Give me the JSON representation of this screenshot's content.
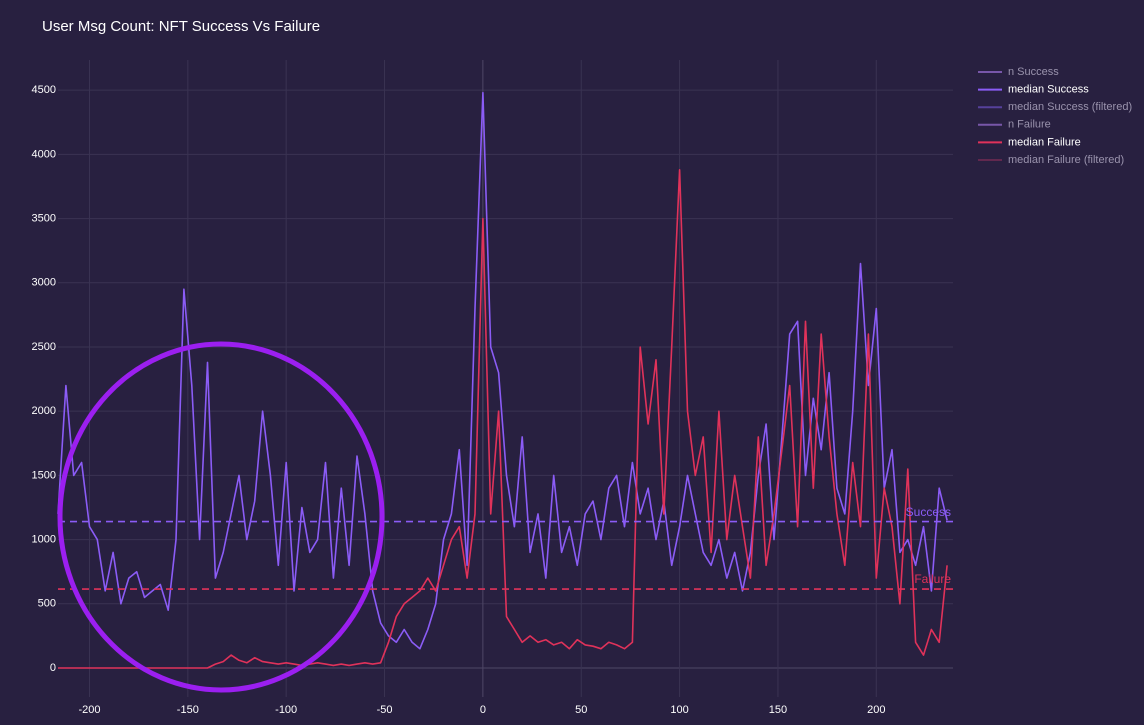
{
  "chart_data": {
    "type": "line",
    "title": "User Msg Count: NFT Success Vs Failure",
    "xlim": [
      -216,
      239
    ],
    "ylim": [
      -226,
      4735
    ],
    "xticks": [
      -200,
      -150,
      -100,
      -50,
      0,
      50,
      100,
      150,
      200
    ],
    "yticks": [
      0,
      500,
      1000,
      1500,
      2000,
      2500,
      3000,
      3500,
      4000,
      4500
    ],
    "grid": true,
    "legend": [
      {
        "name": "n Success",
        "color": "#9b6fd6",
        "dim": true
      },
      {
        "name": "median Success",
        "color": "#8b5cf6",
        "dim": false
      },
      {
        "name": "median Success (filtered)",
        "color": "#6a4fc2",
        "dim": true
      },
      {
        "name": "n Failure",
        "color": "#9b6fd6",
        "dim": true
      },
      {
        "name": "median Failure",
        "color": "#e0325a",
        "dim": false
      },
      {
        "name": "median Failure (filtered)",
        "color": "#7a2c55",
        "dim": true
      }
    ],
    "hlines": [
      {
        "value": 1140,
        "label": "Success",
        "color": "#8b5cf6"
      },
      {
        "value": 615,
        "label": "Failure",
        "color": "#e0325a"
      }
    ],
    "x": [
      -216,
      -212,
      -208,
      -204,
      -200,
      -196,
      -192,
      -188,
      -184,
      -180,
      -176,
      -172,
      -168,
      -164,
      -160,
      -156,
      -152,
      -148,
      -144,
      -140,
      -136,
      -132,
      -128,
      -124,
      -120,
      -116,
      -112,
      -108,
      -104,
      -100,
      -96,
      -92,
      -88,
      -84,
      -80,
      -76,
      -72,
      -68,
      -64,
      -60,
      -56,
      -52,
      -48,
      -44,
      -40,
      -36,
      -32,
      -28,
      -24,
      -20,
      -16,
      -12,
      -8,
      -4,
      0,
      4,
      8,
      12,
      16,
      20,
      24,
      28,
      32,
      36,
      40,
      44,
      48,
      52,
      56,
      60,
      64,
      68,
      72,
      76,
      80,
      84,
      88,
      92,
      96,
      100,
      104,
      108,
      112,
      116,
      120,
      124,
      128,
      132,
      136,
      140,
      144,
      148,
      152,
      156,
      160,
      164,
      168,
      172,
      176,
      180,
      184,
      188,
      192,
      196,
      200,
      204,
      208,
      212,
      216,
      220,
      224,
      228,
      232,
      236
    ],
    "series": [
      {
        "color": "#8b5cf6",
        "values": [
          1200,
          2200,
          1500,
          1600,
          1100,
          1000,
          600,
          900,
          500,
          700,
          750,
          550,
          600,
          650,
          450,
          1000,
          2950,
          2200,
          1000,
          2380,
          700,
          900,
          1200,
          1500,
          1000,
          1300,
          2000,
          1500,
          800,
          1600,
          600,
          1250,
          900,
          1000,
          1600,
          700,
          1400,
          800,
          1650,
          1200,
          600,
          350,
          250,
          200,
          300,
          200,
          150,
          300,
          500,
          1000,
          1200,
          1700,
          800,
          2800,
          4480,
          2500,
          2300,
          1500,
          1100,
          1800,
          900,
          1200,
          700,
          1500,
          900,
          1100,
          800,
          1200,
          1300,
          1000,
          1400,
          1500,
          1100,
          1600,
          1200,
          1400,
          1000,
          1300,
          800,
          1100,
          1500,
          1200,
          900,
          800,
          1000,
          700,
          900,
          600,
          900,
          1500,
          1900,
          1000,
          1800,
          2600,
          2700,
          1500,
          2100,
          1700,
          2300,
          1400,
          1200,
          2000,
          3150,
          2200,
          2800,
          1400,
          1700,
          900,
          1000,
          800,
          1100,
          600,
          1400,
          1150
        ]
      },
      {
        "color": "#e0325a",
        "values": [
          0,
          0,
          0,
          0,
          0,
          0,
          0,
          0,
          0,
          0,
          0,
          0,
          0,
          0,
          0,
          0,
          0,
          0,
          0,
          0,
          30,
          50,
          100,
          60,
          40,
          80,
          50,
          40,
          30,
          40,
          30,
          20,
          30,
          40,
          30,
          20,
          30,
          20,
          30,
          40,
          30,
          40,
          200,
          400,
          500,
          550,
          600,
          700,
          600,
          800,
          1000,
          1100,
          700,
          1200,
          3500,
          1200,
          2000,
          400,
          300,
          200,
          250,
          200,
          220,
          180,
          200,
          150,
          220,
          180,
          170,
          150,
          200,
          180,
          150,
          200,
          2500,
          1900,
          2400,
          1200,
          2500,
          3880,
          2000,
          1500,
          1800,
          900,
          2000,
          1000,
          1500,
          1100,
          700,
          1800,
          800,
          1200,
          1700,
          2200,
          1100,
          2700,
          1400,
          2600,
          1800,
          1200,
          800,
          1600,
          1100,
          2600,
          700,
          1400,
          1100,
          500,
          1550,
          200,
          100,
          300,
          200,
          800
        ]
      }
    ]
  }
}
